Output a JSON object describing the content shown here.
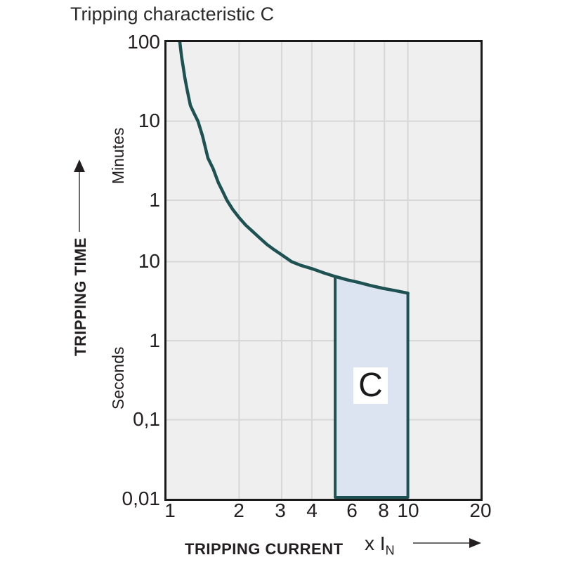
{
  "title": "Tripping characteristic C",
  "region_label": "C",
  "y_axis": {
    "label": "TRIPPING TIME",
    "unit_upper": "Minutes",
    "unit_lower": "Seconds",
    "ticks": [
      "100",
      "10",
      "1",
      "10",
      "1",
      "0,1",
      "0,01"
    ]
  },
  "x_axis": {
    "label": "TRIPPING CURRENT",
    "unit_prefix": "x I",
    "unit_sub": "N",
    "ticks": [
      "1",
      "2",
      "3",
      "4",
      "6",
      "8",
      "10",
      "20"
    ]
  },
  "colors": {
    "curve": "#1e5152",
    "region_fill": "#dce3f1",
    "plot_background": "#efefef",
    "grid": "#d7d7d7",
    "border": "#1a1a1a",
    "text": "#231f20"
  },
  "chart_data": {
    "type": "line",
    "title": "Tripping characteristic C",
    "xlabel": "TRIPPING CURRENT (x IN)",
    "ylabel": "TRIPPING TIME",
    "x_scale": "log",
    "y_scale": "log",
    "xlim": [
      1,
      20
    ],
    "ylim_seconds": [
      0.01,
      6000
    ],
    "x_ticks": [
      1,
      2,
      3,
      4,
      6,
      8,
      10,
      20
    ],
    "y_ticks": [
      {
        "label": "100",
        "unit": "Minutes",
        "seconds": 6000
      },
      {
        "label": "10",
        "unit": "Minutes",
        "seconds": 600
      },
      {
        "label": "1",
        "unit": "Minutes",
        "seconds": 60
      },
      {
        "label": "10",
        "unit": "Seconds",
        "seconds": 10
      },
      {
        "label": "1",
        "unit": "Seconds",
        "seconds": 1
      },
      {
        "label": "0,1",
        "unit": "Seconds",
        "seconds": 0.1
      },
      {
        "label": "0,01",
        "unit": "Seconds",
        "seconds": 0.01
      }
    ],
    "grid": true,
    "series": [
      {
        "name": "tripping-curve",
        "points": [
          [
            1.136,
            6000
          ],
          [
            1.155,
            3900
          ],
          [
            1.175,
            2800
          ],
          [
            1.19,
            2150
          ],
          [
            1.22,
            1450
          ],
          [
            1.256,
            950
          ],
          [
            1.3,
            760
          ],
          [
            1.35,
            600
          ],
          [
            1.41,
            390
          ],
          [
            1.485,
            205
          ],
          [
            1.56,
            150
          ],
          [
            1.64,
            100
          ],
          [
            1.7,
            80
          ],
          [
            1.78,
            60
          ],
          [
            1.88,
            46
          ],
          [
            2.0,
            36
          ],
          [
            2.13,
            29
          ],
          [
            2.28,
            24
          ],
          [
            2.44,
            19.8
          ],
          [
            2.61,
            16.5
          ],
          [
            2.79,
            14.2
          ],
          [
            2.98,
            12.4
          ],
          [
            3.14,
            11.1
          ],
          [
            3.3,
            10
          ],
          [
            3.6,
            9.0
          ],
          [
            4.03,
            8.1
          ],
          [
            4.5,
            7.2
          ],
          [
            5.0,
            6.5
          ],
          [
            5.6,
            5.9
          ],
          [
            6.2,
            5.5
          ],
          [
            7.0,
            5.0
          ],
          [
            7.9,
            4.6
          ],
          [
            8.9,
            4.3
          ],
          [
            10.0,
            4.0
          ]
        ]
      }
    ],
    "region": {
      "label": "C",
      "x_range": [
        5,
        10
      ],
      "y_bottom_seconds": 0.01,
      "top_follows_curve": true
    }
  }
}
